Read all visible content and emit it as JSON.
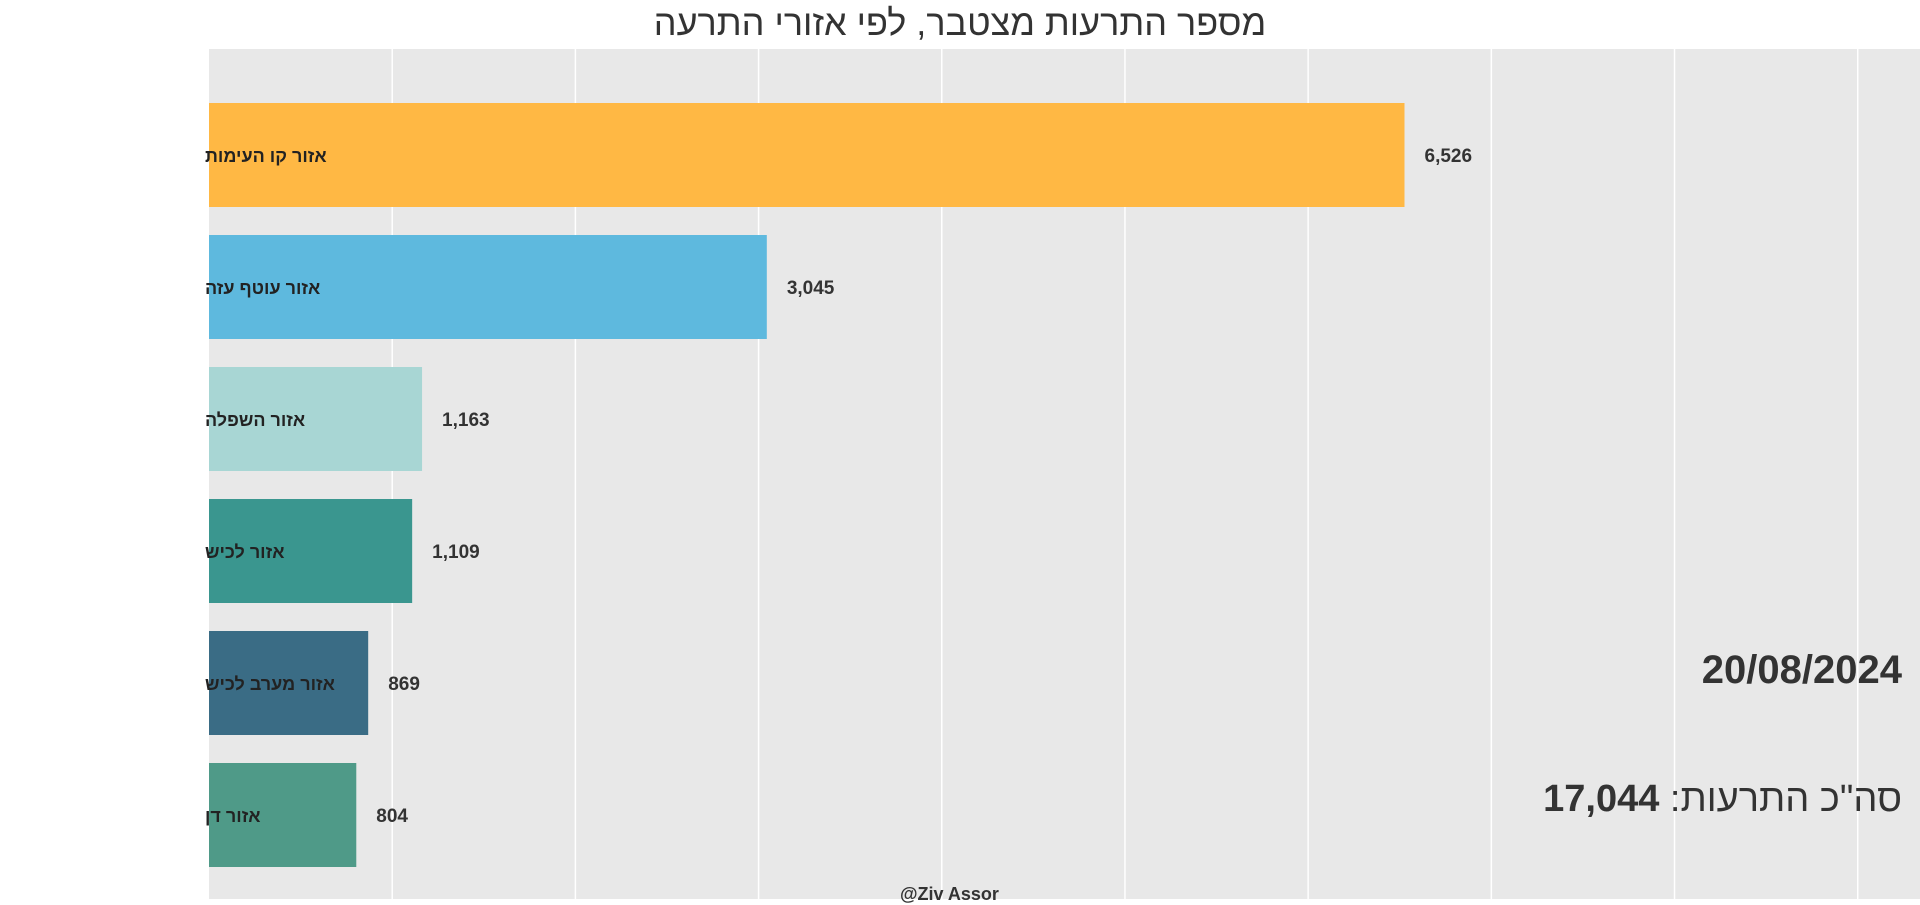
{
  "chart_data": {
    "type": "bar",
    "orientation": "horizontal",
    "title": "מספר התרעות מצטבר, לפי אזורי התרעה",
    "categories": [
      "אזור קו העימות",
      "אזור עוטף עזה",
      "אזור השפלה",
      "אזור לכיש",
      "אזור מערב לכיש",
      "אזור דן"
    ],
    "values": [
      6526,
      3045,
      1163,
      1109,
      869,
      804
    ],
    "value_labels": [
      "6,526",
      "3,045",
      "1,163",
      "1,109",
      "869",
      "804"
    ],
    "colors": [
      "#FFB844",
      "#5EB9DE",
      "#A8D6D4",
      "#3A968F",
      "#3A6C85",
      "#4F9A88"
    ],
    "xlim": [
      0,
      9340
    ],
    "grid": true,
    "grid_step": 1000,
    "tick_labels_shown": false,
    "background": "#E8E8E8"
  },
  "date": "20/08/2024",
  "total_label": "סה\"כ התרעות:",
  "total_value": "17,044",
  "watermark": "@Ziv Assor"
}
